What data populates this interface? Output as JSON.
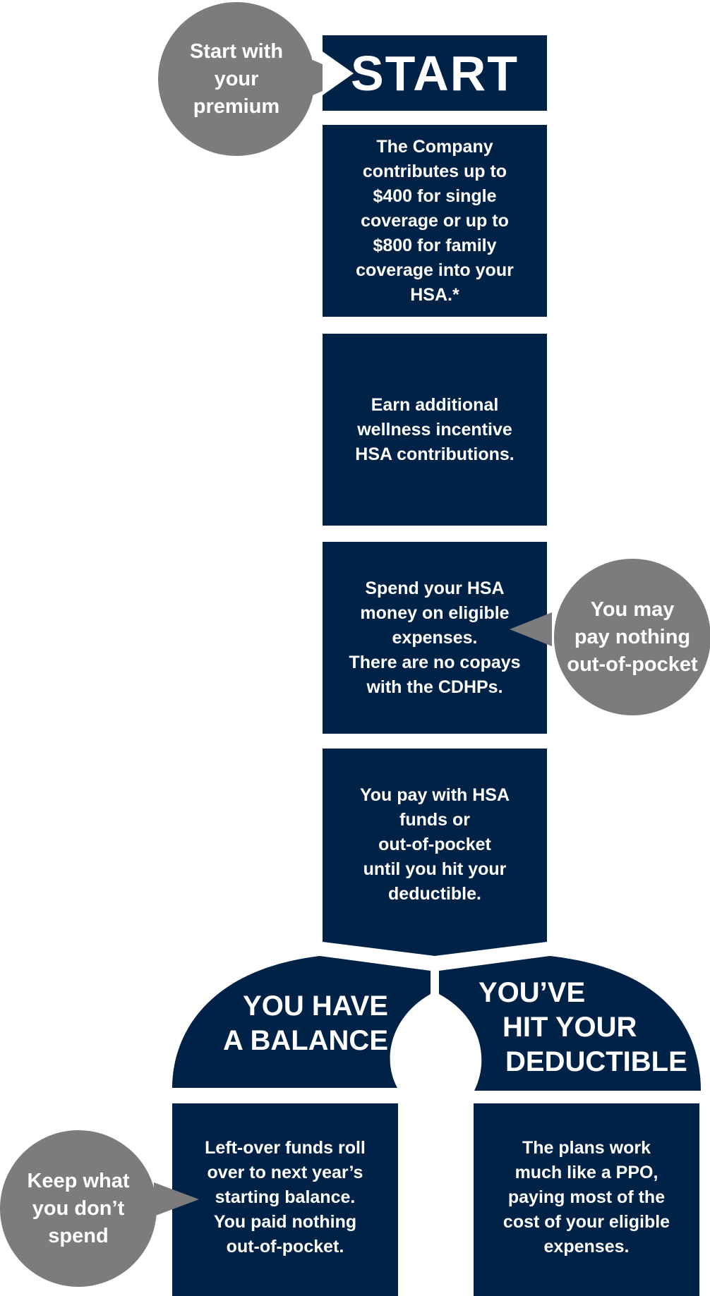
{
  "colors": {
    "navy": "#012247",
    "gray": "#7c7c7f",
    "white": "#ffffff"
  },
  "start_bubble": [
    "Start with",
    "your",
    "premium"
  ],
  "start_box": {
    "title": "START"
  },
  "steps": [
    {
      "lines": [
        "The Company",
        "contributes up to",
        "$400 for single",
        "coverage or up to",
        "$800 for family",
        "coverage into your",
        "HSA.*"
      ]
    },
    {
      "lines": [
        "Earn additional",
        "wellness incentive",
        "HSA contributions."
      ]
    },
    {
      "lines": [
        "Spend your HSA",
        "money on eligible",
        "expenses.",
        "There are no copays",
        "with the CDHPs."
      ]
    },
    {
      "lines": [
        "You pay with HSA",
        "funds or",
        "out-of-pocket",
        "until you hit your",
        "deductible."
      ]
    }
  ],
  "nothing_bubble": [
    "You may",
    "pay nothing",
    "out-of-pocket"
  ],
  "branches": {
    "balance": {
      "title": [
        "YOU HAVE",
        "A BALANCE"
      ],
      "text": [
        "Left-over funds roll",
        "over to next year’s",
        "starting balance.",
        "You paid nothing",
        "out-of-pocket."
      ]
    },
    "deductible": {
      "title": [
        "YOU’VE",
        "HIT YOUR",
        "DEDUCTIBLE"
      ],
      "text": [
        "The plans work",
        "much like a PPO,",
        "paying most of the",
        "cost of your eligible",
        "expenses."
      ]
    }
  },
  "keep_bubble": [
    "Keep what",
    "you don’t",
    "spend"
  ]
}
